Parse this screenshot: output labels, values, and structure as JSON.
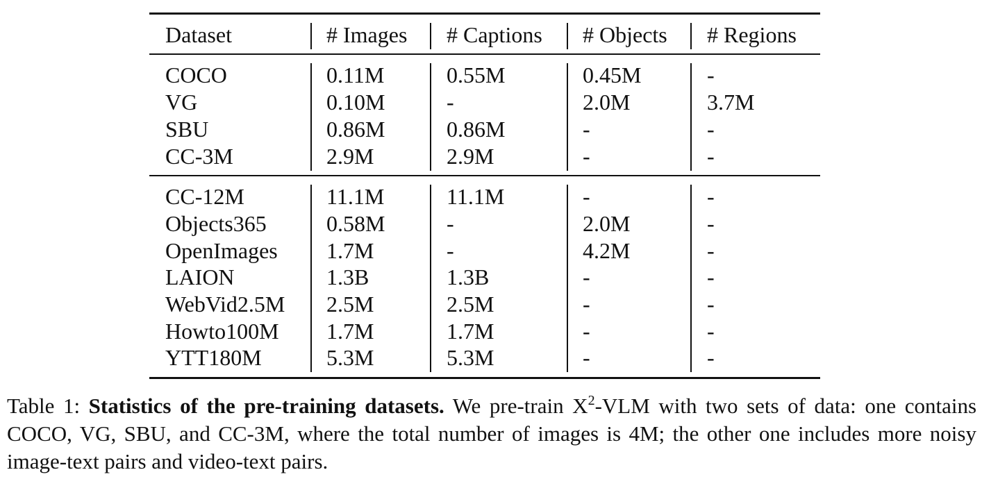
{
  "table": {
    "headers": [
      "Dataset",
      "# Images",
      "# Captions",
      "# Objects",
      "# Regions"
    ],
    "groups": [
      {
        "rows": [
          [
            "COCO",
            "0.11M",
            "0.55M",
            "0.45M",
            "-"
          ],
          [
            "VG",
            "0.10M",
            "-",
            "2.0M",
            "3.7M"
          ],
          [
            "SBU",
            "0.86M",
            "0.86M",
            "-",
            "-"
          ],
          [
            "CC-3M",
            "2.9M",
            "2.9M",
            "-",
            "-"
          ]
        ]
      },
      {
        "rows": [
          [
            "CC-12M",
            "11.1M",
            "11.1M",
            "-",
            "-"
          ],
          [
            "Objects365",
            "0.58M",
            "-",
            "2.0M",
            "-"
          ],
          [
            "OpenImages",
            "1.7M",
            "-",
            "4.2M",
            "-"
          ],
          [
            "LAION",
            "1.3B",
            "1.3B",
            "-",
            "-"
          ],
          [
            "WebVid2.5M",
            "2.5M",
            "2.5M",
            "-",
            "-"
          ],
          [
            "Howto100M",
            "1.7M",
            "1.7M",
            "-",
            "-"
          ],
          [
            "YTT180M",
            "5.3M",
            "5.3M",
            "-",
            "-"
          ]
        ]
      }
    ]
  },
  "caption": {
    "label": "Table 1:",
    "title": "Statistics of the pre-training datasets.",
    "text_before_sup": "We pre-train X",
    "sup": "2",
    "text_after_sup": "-VLM with two sets of data: one contains COCO, VG, SBU, and CC-3M, where the total number of images is 4M; the other one includes more noisy image-text pairs and video-text pairs."
  }
}
